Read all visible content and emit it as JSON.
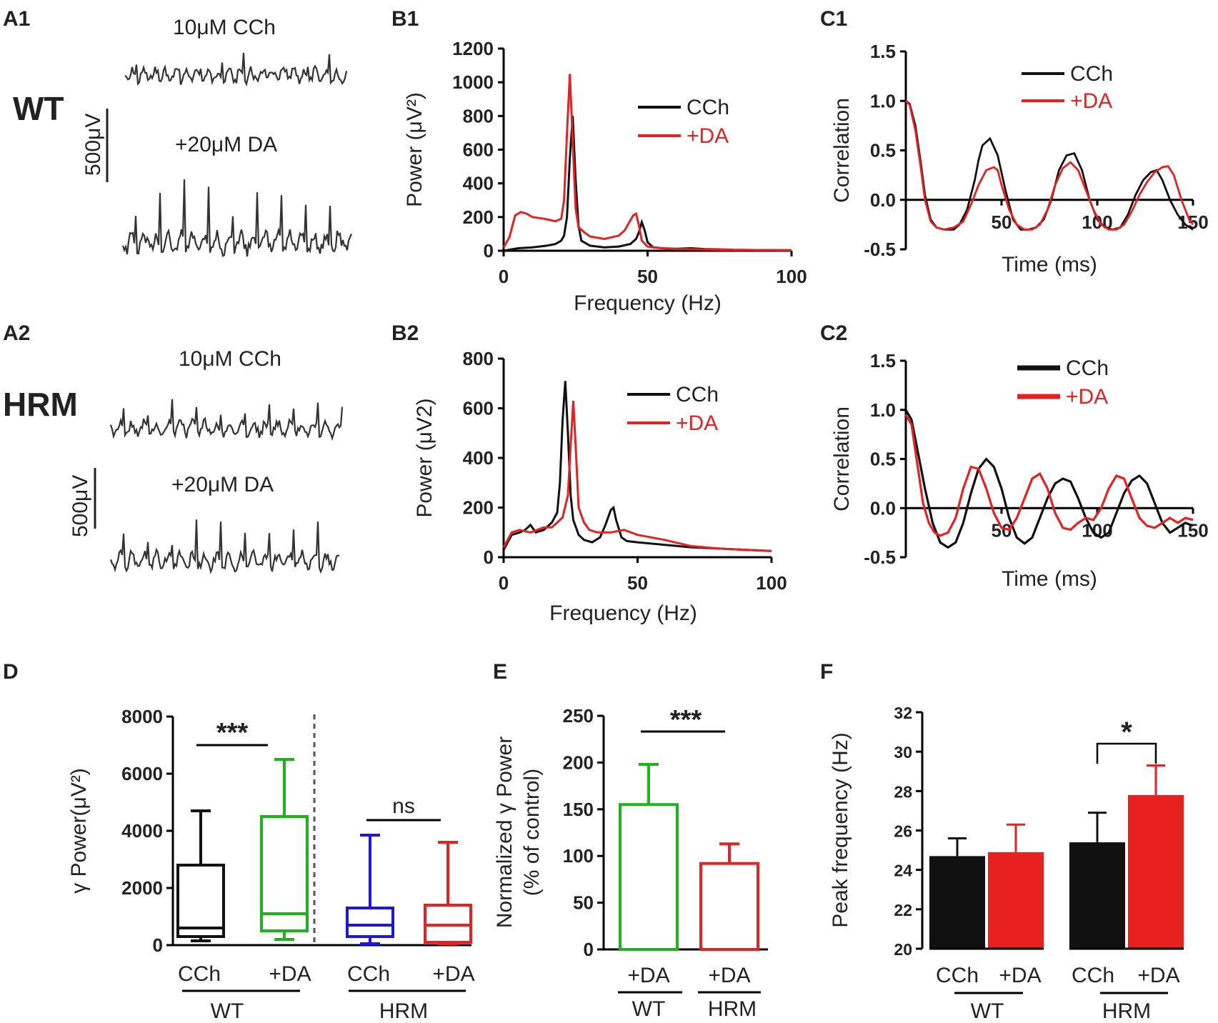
{
  "colors": {
    "black": "#111111",
    "red": "#e8201f",
    "green": "#1db31a",
    "blue": "#1f14e6"
  },
  "panel_labels": {
    "a1": "A1",
    "a2": "A2",
    "b1": "B1",
    "b2": "B2",
    "c1": "C1",
    "c2": "C2",
    "d": "D",
    "e": "E",
    "f": "F"
  },
  "traces": {
    "wt_label": "WT",
    "hrm_label": "HRM",
    "cch_label": "10μM CCh",
    "da_label": "+20μM DA",
    "scale_label": "500μV"
  },
  "chart_data": [
    {
      "id": "B1",
      "type": "line",
      "xlabel": "Frequency (Hz)",
      "ylabel": "Power (μV²)",
      "xlim": [
        0,
        100
      ],
      "ylim": [
        0,
        1200
      ],
      "xticks": [
        "0",
        "50",
        "100"
      ],
      "yticks": [
        "0",
        "200",
        "400",
        "600",
        "800",
        "1000",
        "1200"
      ],
      "legend": "top-right",
      "series": [
        {
          "name": "CCh",
          "color": "#111111",
          "x": [
            0,
            5,
            10,
            15,
            18,
            20,
            21,
            22,
            23,
            24,
            25,
            26,
            27,
            30,
            35,
            40,
            44,
            46,
            47,
            48,
            49,
            50,
            52,
            55,
            60,
            65,
            70,
            75,
            80,
            90,
            100
          ],
          "y": [
            0,
            15,
            20,
            30,
            40,
            60,
            90,
            200,
            550,
            800,
            420,
            150,
            60,
            30,
            20,
            25,
            40,
            70,
            110,
            170,
            120,
            50,
            20,
            15,
            12,
            15,
            10,
            8,
            5,
            4,
            3
          ]
        },
        {
          "name": "+DA",
          "color": "#e8201f",
          "x": [
            0,
            2,
            4,
            6,
            8,
            10,
            14,
            18,
            20,
            21,
            22,
            23,
            24,
            25,
            26,
            28,
            30,
            35,
            40,
            42,
            44,
            45,
            46,
            47,
            48,
            50,
            55,
            60,
            70,
            80,
            90,
            100
          ],
          "y": [
            20,
            80,
            210,
            230,
            220,
            200,
            190,
            175,
            190,
            300,
            700,
            1050,
            650,
            250,
            140,
            110,
            85,
            70,
            90,
            120,
            180,
            210,
            220,
            150,
            60,
            25,
            15,
            10,
            8,
            5,
            4,
            3
          ]
        }
      ]
    },
    {
      "id": "B2",
      "type": "line",
      "xlabel": "Frequency (Hz)",
      "ylabel": "Power (μV2)",
      "xlim": [
        0,
        100
      ],
      "ylim": [
        0,
        800
      ],
      "xticks": [
        "0",
        "50",
        "100"
      ],
      "yticks": [
        "0",
        "200",
        "400",
        "600",
        "800"
      ],
      "legend": "top-right",
      "series": [
        {
          "name": "CCh",
          "color": "#111111",
          "x": [
            0,
            3,
            6,
            8,
            10,
            12,
            15,
            18,
            20,
            21,
            22,
            23,
            24,
            25,
            26,
            28,
            30,
            33,
            36,
            38,
            40,
            41,
            42,
            44,
            46,
            50,
            60,
            70,
            80,
            90,
            100
          ],
          "y": [
            30,
            90,
            100,
            110,
            130,
            100,
            110,
            140,
            180,
            300,
            550,
            710,
            500,
            250,
            150,
            90,
            70,
            60,
            80,
            130,
            190,
            200,
            150,
            80,
            65,
            60,
            50,
            40,
            35,
            30,
            25
          ]
        },
        {
          "name": "+DA",
          "color": "#e8201f",
          "x": [
            0,
            3,
            6,
            10,
            15,
            18,
            20,
            22,
            24,
            25,
            26,
            27,
            28,
            30,
            32,
            35,
            40,
            45,
            50,
            55,
            60,
            70,
            80,
            90,
            100
          ],
          "y": [
            40,
            100,
            110,
            100,
            120,
            120,
            140,
            160,
            250,
            450,
            630,
            420,
            200,
            140,
            110,
            100,
            100,
            110,
            90,
            80,
            70,
            45,
            35,
            30,
            25
          ]
        }
      ]
    },
    {
      "id": "C1",
      "type": "line",
      "xlabel": "Time (ms)",
      "ylabel": "Correlation",
      "xlim": [
        0,
        150
      ],
      "ylim": [
        -0.5,
        1.5
      ],
      "xticks": [
        "50",
        "100",
        "150"
      ],
      "yticks": [
        "-0.5",
        "0.0",
        "0.5",
        "1.0",
        "1.5"
      ],
      "legend": "top-right",
      "series": [
        {
          "name": "CCh",
          "color": "#111111",
          "x": [
            0,
            2,
            5,
            8,
            10,
            13,
            16,
            20,
            25,
            28,
            32,
            36,
            38,
            40,
            44,
            48,
            52,
            56,
            60,
            64,
            68,
            72,
            76,
            80,
            84,
            88,
            92,
            96,
            100,
            104,
            108,
            112,
            116,
            120,
            124,
            128,
            131,
            134,
            138,
            142,
            146,
            150
          ],
          "y": [
            1.0,
            0.97,
            0.75,
            0.35,
            0.05,
            -0.2,
            -0.28,
            -0.3,
            -0.3,
            -0.25,
            -0.1,
            0.2,
            0.4,
            0.55,
            0.62,
            0.45,
            0.1,
            -0.2,
            -0.3,
            -0.3,
            -0.28,
            -0.2,
            0.0,
            0.3,
            0.45,
            0.47,
            0.3,
            0.0,
            -0.2,
            -0.28,
            -0.3,
            -0.28,
            -0.15,
            0.05,
            0.2,
            0.28,
            0.3,
            0.2,
            0.0,
            -0.15,
            -0.25,
            -0.3
          ]
        },
        {
          "name": "+DA",
          "color": "#e8201f",
          "x": [
            0,
            2,
            5,
            8,
            10,
            13,
            16,
            20,
            25,
            30,
            34,
            38,
            42,
            46,
            48,
            50,
            54,
            58,
            62,
            66,
            70,
            74,
            78,
            82,
            86,
            90,
            94,
            98,
            102,
            106,
            110,
            114,
            118,
            122,
            126,
            130,
            134,
            137,
            140,
            144,
            148,
            150
          ],
          "y": [
            1.0,
            0.96,
            0.7,
            0.3,
            0.0,
            -0.22,
            -0.28,
            -0.3,
            -0.28,
            -0.22,
            -0.05,
            0.15,
            0.3,
            0.33,
            0.3,
            0.15,
            -0.1,
            -0.25,
            -0.3,
            -0.3,
            -0.25,
            -0.1,
            0.15,
            0.32,
            0.38,
            0.3,
            0.1,
            -0.1,
            -0.25,
            -0.3,
            -0.3,
            -0.25,
            -0.12,
            0.05,
            0.18,
            0.28,
            0.33,
            0.34,
            0.25,
            0.0,
            -0.2,
            -0.25
          ]
        }
      ]
    },
    {
      "id": "C2",
      "type": "line",
      "xlabel": "Time (ms)",
      "ylabel": "Correlation",
      "xlim": [
        0,
        150
      ],
      "ylim": [
        -0.5,
        1.5
      ],
      "xticks": [
        "50",
        "100",
        "150"
      ],
      "yticks": [
        "-0.5",
        "0.0",
        "0.5",
        "1.0",
        "1.5"
      ],
      "legend": "top-right",
      "series": [
        {
          "name": "CCh",
          "color": "#111111",
          "x": [
            0,
            3,
            6,
            10,
            14,
            18,
            22,
            26,
            30,
            34,
            38,
            42,
            46,
            50,
            54,
            58,
            62,
            66,
            70,
            74,
            78,
            82,
            86,
            90,
            94,
            98,
            102,
            106,
            110,
            114,
            118,
            122,
            126,
            130,
            134,
            138,
            142,
            146,
            150
          ],
          "y": [
            1.0,
            0.9,
            0.6,
            0.2,
            -0.15,
            -0.35,
            -0.4,
            -0.35,
            -0.15,
            0.15,
            0.4,
            0.5,
            0.42,
            0.2,
            -0.1,
            -0.3,
            -0.36,
            -0.3,
            -0.1,
            0.1,
            0.25,
            0.3,
            0.27,
            0.1,
            -0.1,
            -0.25,
            -0.3,
            -0.25,
            -0.05,
            0.15,
            0.28,
            0.33,
            0.25,
            0.05,
            -0.15,
            -0.25,
            -0.2,
            -0.15,
            -0.18
          ]
        },
        {
          "name": "+DA",
          "color": "#e8201f",
          "x": [
            0,
            3,
            6,
            9,
            12,
            15,
            18,
            22,
            26,
            30,
            34,
            38,
            42,
            46,
            50,
            54,
            58,
            62,
            66,
            70,
            74,
            78,
            82,
            86,
            90,
            94,
            98,
            102,
            106,
            110,
            114,
            118,
            122,
            126,
            130,
            134,
            138,
            142,
            146,
            150
          ],
          "y": [
            0.95,
            0.85,
            0.45,
            0.05,
            -0.15,
            -0.25,
            -0.28,
            -0.25,
            -0.1,
            0.2,
            0.42,
            0.4,
            0.2,
            -0.05,
            -0.2,
            -0.22,
            -0.1,
            0.1,
            0.3,
            0.35,
            0.2,
            -0.05,
            -0.2,
            -0.22,
            -0.15,
            -0.1,
            -0.12,
            0.0,
            0.2,
            0.33,
            0.3,
            0.1,
            -0.1,
            -0.18,
            -0.2,
            -0.15,
            -0.1,
            -0.15,
            -0.1,
            -0.12
          ]
        }
      ]
    },
    {
      "id": "D",
      "type": "box",
      "ylabel": "γ Power(μV²)",
      "ylim": [
        0,
        8000
      ],
      "yticks": [
        "0",
        "2000",
        "4000",
        "6000",
        "8000"
      ],
      "categories": [
        "CCh",
        "+DA",
        "CCh",
        "+DA"
      ],
      "group_labels": [
        "WT",
        "HRM"
      ],
      "significance": [
        "***",
        "ns"
      ],
      "boxes": [
        {
          "name": "WT CCh",
          "color": "#111111",
          "min": 150,
          "q1": 300,
          "median": 600,
          "q3": 2800,
          "max": 4700
        },
        {
          "name": "WT +DA",
          "color": "#1db31a",
          "min": 200,
          "q1": 500,
          "median": 1100,
          "q3": 4500,
          "max": 6500
        },
        {
          "name": "HRM CCh",
          "color": "#1f14e6",
          "min": 50,
          "q1": 300,
          "median": 700,
          "q3": 1300,
          "max": 3850
        },
        {
          "name": "HRM +DA",
          "color": "#e8201f",
          "min": 50,
          "q1": 100,
          "median": 700,
          "q3": 1400,
          "max": 3600
        }
      ]
    },
    {
      "id": "E",
      "type": "bar",
      "ylabel": "Normalized γ Power",
      "ylabel2": "(% of control)",
      "ylim": [
        0,
        250
      ],
      "yticks": [
        "0",
        "50",
        "100",
        "150",
        "200",
        "250"
      ],
      "categories": [
        "+DA",
        "+DA"
      ],
      "group_labels": [
        "WT",
        "HRM"
      ],
      "significance": "***",
      "bars": [
        {
          "name": "WT +DA",
          "value": 155,
          "error": 43,
          "color": "#1db31a"
        },
        {
          "name": "HRM +DA",
          "value": 92,
          "error": 21,
          "color": "#e8201f"
        }
      ]
    },
    {
      "id": "F",
      "type": "bar",
      "ylabel": "Peak frequency (Hz)",
      "ylim": [
        20,
        32
      ],
      "yticks": [
        "20",
        "22",
        "24",
        "26",
        "28",
        "30",
        "32"
      ],
      "categories": [
        "CCh",
        "+DA",
        "CCh",
        "+DA"
      ],
      "group_labels": [
        "WT",
        "HRM"
      ],
      "significance": "*",
      "bars": [
        {
          "name": "WT CCh",
          "value": 24.7,
          "error": 0.9,
          "color": "#111111"
        },
        {
          "name": "WT +DA",
          "value": 24.9,
          "error": 1.4,
          "color": "#e8201f"
        },
        {
          "name": "HRM CCh",
          "value": 25.4,
          "error": 1.5,
          "color": "#111111"
        },
        {
          "name": "HRM +DA",
          "value": 27.8,
          "error": 1.5,
          "color": "#e8201f"
        }
      ]
    }
  ]
}
